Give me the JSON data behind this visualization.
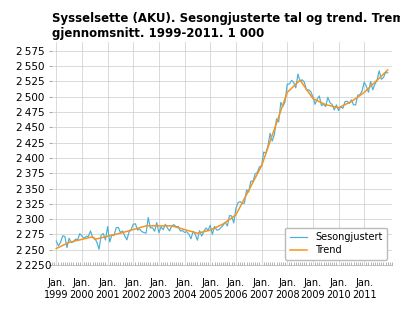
{
  "title": "Sysselsette (AKU). Sesongjusterte tal og trend. Tremånaders glidande\ngjennomsnitt. 1999-2011. 1 000",
  "title_fontsize": 8.5,
  "ylim_main": [
    2225,
    2590
  ],
  "yticks_main": [
    2225,
    2250,
    2275,
    2300,
    2325,
    2350,
    2375,
    2400,
    2425,
    2450,
    2475,
    2500,
    2525,
    2550,
    2575
  ],
  "xtick_labels": [
    "Jan.\n1999",
    "Jan.\n2000",
    "Jan.\n2001",
    "Jan.\n2002",
    "Jan.\n2003",
    "Jan.\n2004",
    "Jan.\n2005",
    "Jan.\n2006",
    "Jan.\n2007",
    "Jan.\n2008",
    "Jan.\n2009",
    "Jan.\n2010",
    "Jan.\n2011"
  ],
  "color_seasonal": "#4bafd6",
  "color_trend": "#f5941e",
  "legend_loc": "lower right",
  "background_color": "#ffffff",
  "grid_color": "#cccccc",
  "num_points": 156
}
